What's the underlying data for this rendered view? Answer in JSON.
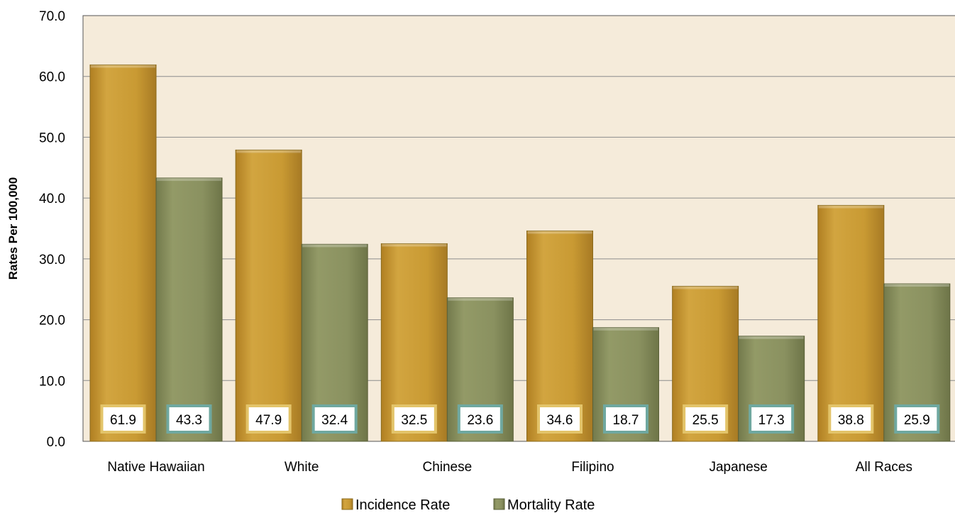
{
  "chart_data": {
    "type": "bar",
    "categories": [
      "Native Hawaiian",
      "White",
      "Chinese",
      "Filipino",
      "Japanese",
      "All Races"
    ],
    "series": [
      {
        "name": "Incidence Rate",
        "values": [
          61.9,
          47.9,
          32.5,
          34.6,
          25.5,
          38.8
        ],
        "color": "#C99A33",
        "label_border": "#E3C46A"
      },
      {
        "name": "Mortality Rate",
        "values": [
          43.3,
          32.4,
          23.6,
          18.7,
          17.3,
          25.9
        ],
        "color": "#8A9160",
        "label_border": "#6FA8A0"
      }
    ],
    "data_labels": [
      [
        "61.9",
        "47.9",
        "32.5",
        "34.6",
        "25.5",
        "38.8"
      ],
      [
        "43.3",
        "32.4",
        "23.6",
        "18.7",
        "17.3",
        "25.9"
      ]
    ],
    "ylabel": "Rates Per 100,000",
    "xlabel": "",
    "ylim": [
      0,
      70
    ],
    "yticks": [
      "0.0",
      "10.0",
      "20.0",
      "30.0",
      "40.0",
      "50.0",
      "60.0",
      "70.0"
    ],
    "grid": true,
    "legend_position": "bottom-center",
    "plot_background": "#F5EBDA"
  }
}
